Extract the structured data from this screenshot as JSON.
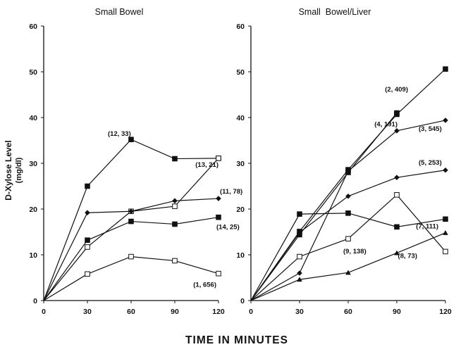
{
  "chart_data": [
    {
      "type": "line",
      "title": "Small Bowel",
      "ylabel": "D-Xylose Level",
      "yunit": "(mg/dl)",
      "xlabel": "TIME IN MINUTES",
      "x": [
        0,
        30,
        60,
        90,
        120
      ],
      "xticks": [
        "0",
        "30",
        "60",
        "90",
        "120"
      ],
      "yticks": [
        "0",
        "10",
        "20",
        "30",
        "40",
        "50",
        "60"
      ],
      "xlim": [
        0,
        120
      ],
      "ylim": [
        0,
        60
      ],
      "grid": false,
      "series": [
        {
          "name": "(12, 33)",
          "marker": "square-filled",
          "x": [
            0,
            30,
            60,
            90,
            120
          ],
          "values": [
            0,
            25,
            35.2,
            31,
            31.1
          ]
        },
        {
          "name": "(13, 21)",
          "marker": "square-open",
          "x": [
            0,
            30,
            60,
            90,
            120
          ],
          "values": [
            0,
            11.7,
            19.5,
            20.6,
            31.1
          ]
        },
        {
          "name": "(11, 78)",
          "marker": "diamond-filled",
          "x": [
            0,
            30,
            60,
            90,
            120
          ],
          "values": [
            0,
            19.2,
            19.5,
            21.8,
            22.3
          ]
        },
        {
          "name": "(14, 25)",
          "marker": "square-filled",
          "x": [
            0,
            30,
            60,
            90,
            120
          ],
          "values": [
            0,
            13.2,
            17.3,
            16.7,
            18.2
          ]
        },
        {
          "name": "(1, 656)",
          "marker": "square-open",
          "x": [
            0,
            30,
            60,
            90,
            120
          ],
          "values": [
            0,
            5.8,
            9.6,
            8.7,
            5.9
          ]
        }
      ]
    },
    {
      "type": "line",
      "title": "Small  Bowel/Liver",
      "x": [
        0,
        30,
        60,
        90,
        120
      ],
      "xticks": [
        "0",
        "30",
        "60",
        "90",
        "120"
      ],
      "yticks": [
        "0",
        "10",
        "20",
        "30",
        "40",
        "50",
        "60"
      ],
      "xlim": [
        0,
        120
      ],
      "ylim": [
        0,
        60
      ],
      "grid": false,
      "series": [
        {
          "name": "(2, 409)",
          "marker": "square-filled",
          "x": [
            0,
            30,
            60,
            90,
            120
          ],
          "values": [
            0,
            15.1,
            28.6,
            40.7,
            50.6
          ]
        },
        {
          "name": "(4, 191)",
          "marker": "square-filled",
          "x": [
            0,
            30,
            60,
            90
          ],
          "values": [
            0,
            14.4,
            28,
            41
          ]
        },
        {
          "name": "(3, 545)",
          "marker": "diamond-filled",
          "x": [
            0,
            30,
            60,
            90,
            120
          ],
          "values": [
            0,
            6,
            28.3,
            37.1,
            39.4
          ]
        },
        {
          "name": "(5, 253)",
          "marker": "diamond-filled",
          "x": [
            0,
            30,
            60,
            90,
            120
          ],
          "values": [
            0,
            14.9,
            22.8,
            26.9,
            28.5
          ]
        },
        {
          "name": "(7, 111)",
          "marker": "square-filled",
          "x": [
            0,
            30,
            60,
            90,
            120
          ],
          "values": [
            0,
            18.9,
            19.1,
            16.1,
            17.8
          ]
        },
        {
          "name": "(8, 73)",
          "marker": "square-open",
          "x": [
            0,
            30,
            60,
            90,
            120
          ],
          "values": [
            0,
            9.6,
            13.5,
            23.1,
            10.7
          ]
        },
        {
          "name": "(9, 138)",
          "marker": "triangle-filled",
          "x": [
            0,
            30,
            60,
            90,
            120
          ],
          "values": [
            0,
            4.6,
            6.1,
            10.4,
            14.8
          ]
        }
      ]
    }
  ]
}
